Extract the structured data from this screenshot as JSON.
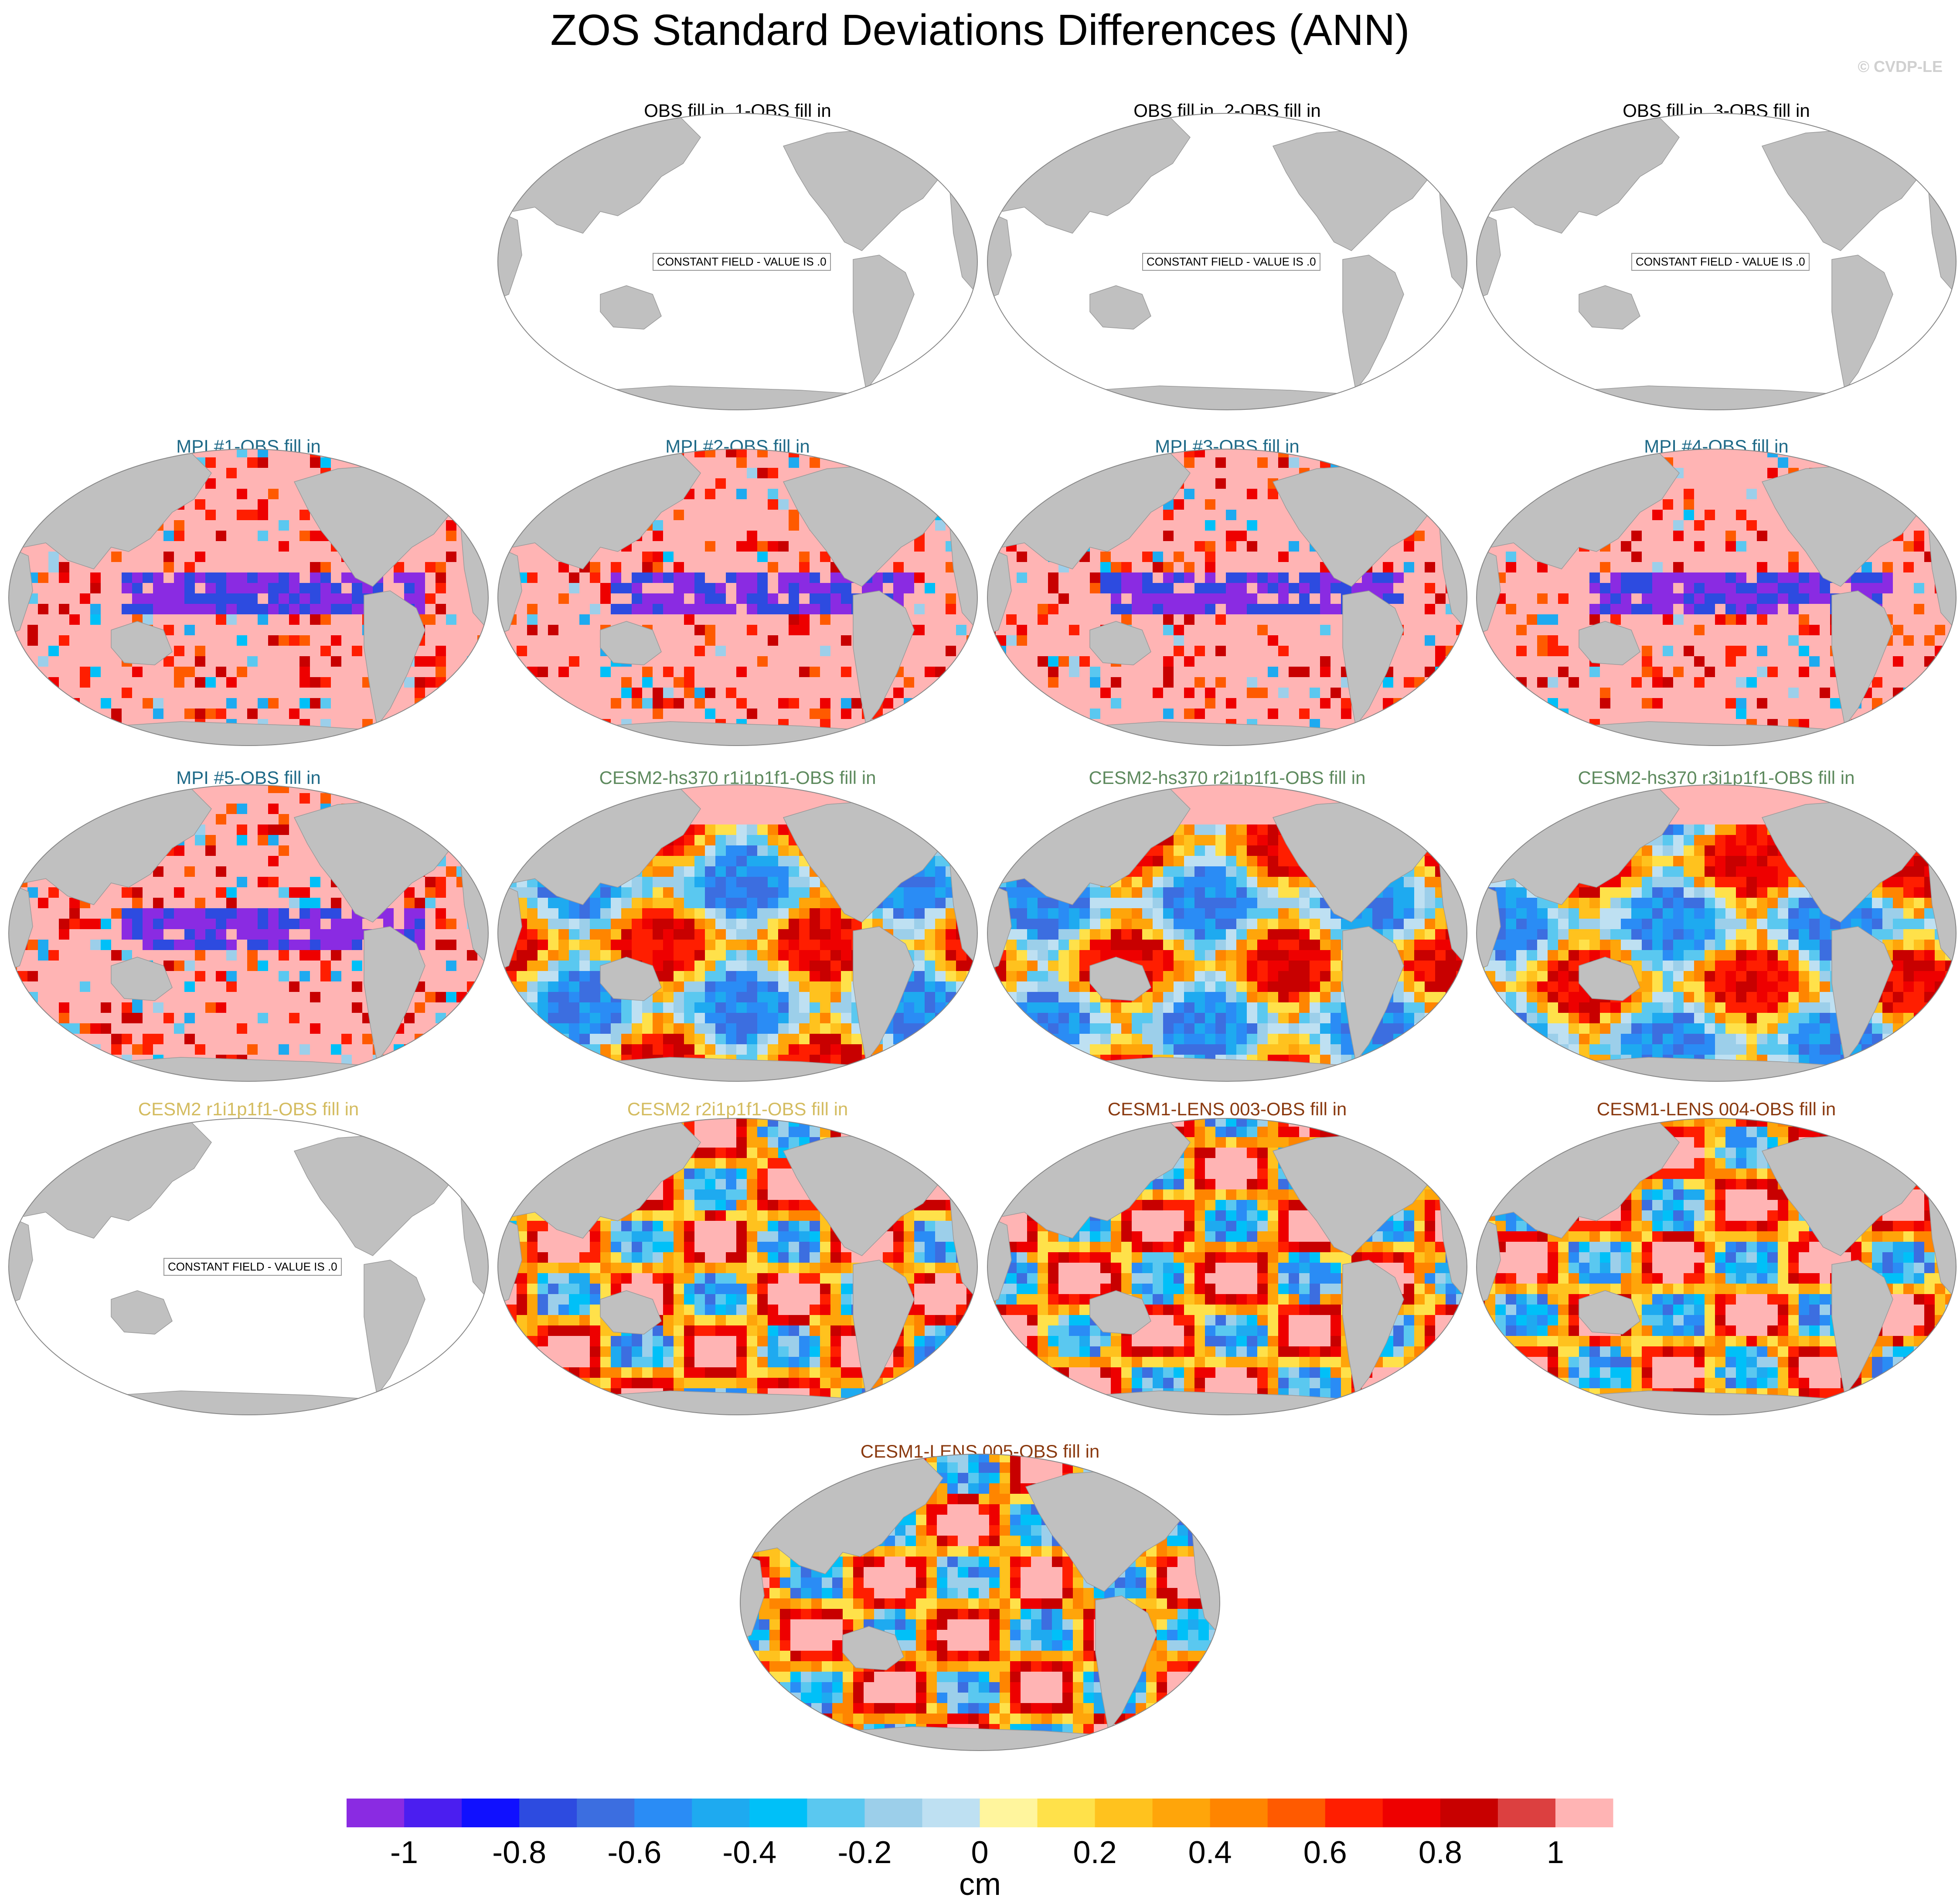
{
  "title": "ZOS Standard Deviations Differences (ANN)",
  "watermark": "© CVDP-LE",
  "constant_label": "CONSTANT FIELD - VALUE IS .0",
  "panels": [
    {
      "title": "OBS fill in_1-OBS fill in",
      "color": "#000000",
      "field": "constant"
    },
    {
      "title": "OBS fill in_2-OBS fill in",
      "color": "#000000",
      "field": "constant"
    },
    {
      "title": "OBS fill in_3-OBS fill in",
      "color": "#000000",
      "field": "constant"
    },
    {
      "title": "MPI #1-OBS fill in",
      "color": "#1f6a88",
      "field": "mpi"
    },
    {
      "title": "MPI #2-OBS fill in",
      "color": "#1f6a88",
      "field": "mpi"
    },
    {
      "title": "MPI #3-OBS fill in",
      "color": "#1f6a88",
      "field": "mpi"
    },
    {
      "title": "MPI #4-OBS fill in",
      "color": "#1f6a88",
      "field": "mpi"
    },
    {
      "title": "MPI #5-OBS fill in",
      "color": "#1f6a88",
      "field": "mpi"
    },
    {
      "title": "CESM2-hs370 r1i1p1f1-OBS fill in",
      "color": "#5e8a5e",
      "field": "cesm2hs"
    },
    {
      "title": "CESM2-hs370 r2i1p1f1-OBS fill in",
      "color": "#5e8a5e",
      "field": "cesm2hs"
    },
    {
      "title": "CESM2-hs370 r3i1p1f1-OBS fill in",
      "color": "#5e8a5e",
      "field": "cesm2hs"
    },
    {
      "title": "CESM2 r1i1p1f1-OBS fill in",
      "color": "#d4bc60",
      "field": "constant"
    },
    {
      "title": "CESM2 r2i1p1f1-OBS fill in",
      "color": "#d4bc60",
      "field": "cesm2"
    },
    {
      "title": "CESM1-LENS 003-OBS fill in",
      "color": "#8a3a10",
      "field": "lens"
    },
    {
      "title": "CESM1-LENS 004-OBS fill in",
      "color": "#8a3a10",
      "field": "lens"
    },
    {
      "title": "CESM1-LENS 005-OBS fill in",
      "color": "#8a3a10",
      "field": "lens"
    }
  ],
  "colorbar": {
    "units": "cm",
    "tick_labels": [
      "-1",
      "-0.8",
      "-0.6",
      "-0.4",
      "-0.2",
      "0",
      "0.2",
      "0.4",
      "0.6",
      "0.8",
      "1"
    ],
    "colors": [
      "#8a2be2",
      "#4b1ef0",
      "#1010ff",
      "#2d4be0",
      "#3c6ee0",
      "#2a8cf5",
      "#1eaaf0",
      "#00c0f8",
      "#5ac8f0",
      "#9ccfea",
      "#bee0f2",
      "#fff59d",
      "#ffe14a",
      "#ffc21e",
      "#ffa50a",
      "#ff8500",
      "#ff5a00",
      "#ff1e00",
      "#ee0000",
      "#c80000",
      "#dc4040",
      "#ffb4b4"
    ]
  },
  "land_color": "#c0c0c0"
}
